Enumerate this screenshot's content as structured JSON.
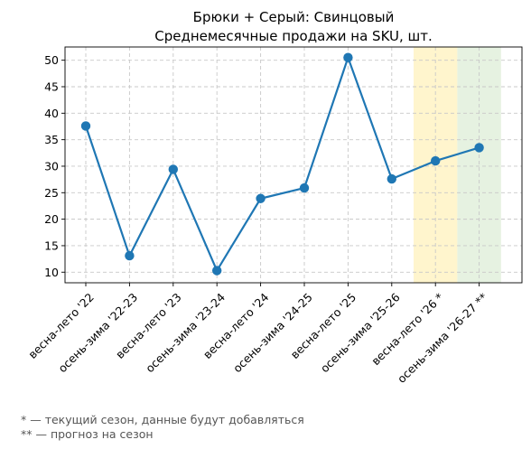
{
  "chart_data": {
    "type": "line",
    "title": "Брюки + Серый: Свинцовый",
    "subtitle": "Среднемесячные продажи на SKU, шт.",
    "xlabel": "",
    "ylabel": "",
    "categories": [
      "весна-лето '22",
      "осень-зима '22-23",
      "весна-лето '23",
      "осень-зима '23-24",
      "весна-лето '24",
      "осень-зима '24-25",
      "весна-лето '25",
      "осень-зима '25-26",
      "весна-лето '26 *",
      "осень-зима '26-27 **"
    ],
    "series": [
      {
        "values": [
          37.6,
          13.1,
          29.4,
          10.3,
          23.9,
          25.9,
          50.5,
          27.6,
          31.0,
          33.5
        ],
        "color": "#1f77b4"
      }
    ],
    "ylim": [
      8.0,
      52.5
    ],
    "yticks": [
      10,
      15,
      20,
      25,
      30,
      35,
      40,
      45,
      50
    ],
    "grid": true,
    "highlight_regions": [
      {
        "category": "весна-лето '26 *",
        "meaning": "current season",
        "color": "#fff3c4"
      },
      {
        "category": "осень-зима '26-27 **",
        "meaning": "forecast",
        "color": "#e2f0dc"
      }
    ]
  },
  "footnotes": [
    "* — текущий сезон, данные будут добавляться",
    "** — прогноз на сезон"
  ]
}
